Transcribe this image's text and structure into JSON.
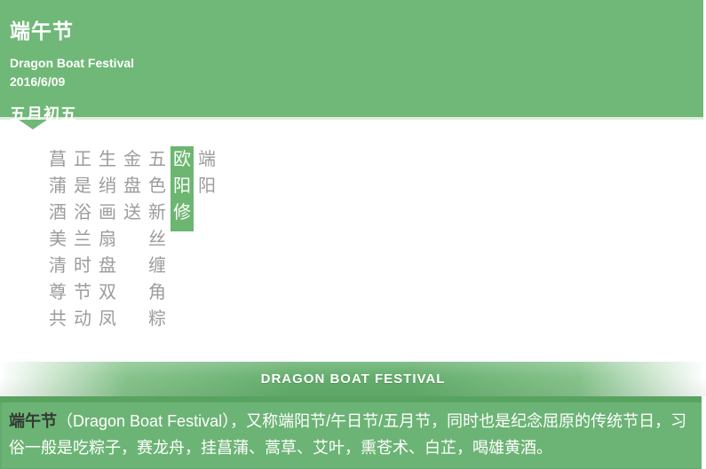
{
  "header": {
    "title": "端午节",
    "subtitle": "Dragon Boat Festival",
    "date": "2016/6/09",
    "lunar_date": "五月初五"
  },
  "poem": {
    "columns": [
      {
        "text": "菖蒲酒美清尊共",
        "highlight": false
      },
      {
        "text": "正是浴兰时节动",
        "highlight": false
      },
      {
        "text": "生绡画扇盘双凤",
        "highlight": false
      },
      {
        "text": "金盘送",
        "highlight": false
      },
      {
        "text": "五色新丝缠角粽",
        "highlight": false
      },
      {
        "text": "欧阳修",
        "highlight": true
      },
      {
        "text": "端阳",
        "highlight": false
      }
    ]
  },
  "banner": {
    "label": "DRAGON BOAT FESTIVAL"
  },
  "footer": {
    "lead": "端午节",
    "body": "（Dragon Boat Festival），又称端阳节/午日节/五月节，同时也是纪念屈原的传统节日，习俗一般是吃粽子，赛龙舟，挂菖蒲、蒿草、艾叶，熏苍术、白芷，喝雄黄酒。"
  },
  "colors": {
    "brand_green": "#6fb877",
    "highlight_green": "#6cb671",
    "ribbon_green": "#63ae6c",
    "footer_green": "#6cb475",
    "footer_edge_green": "#58a360",
    "divider_light_green": "#ddeeda",
    "poem_gray": "#9c9c9c",
    "lead_text_dark": "#333a33"
  }
}
